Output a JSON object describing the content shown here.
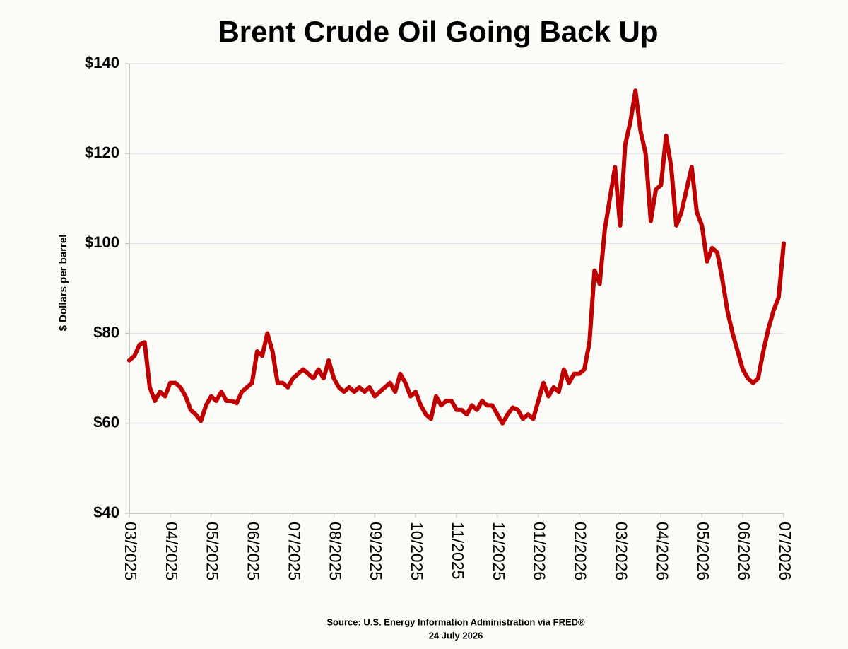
{
  "chart_data": {
    "type": "line",
    "title": "Brent Crude Oil Going Back Up",
    "ylabel": "$ Dollars per barrel",
    "source": "Source: U.S. Energy Information Administration via FRED®",
    "date": "24 July 2026",
    "categories": [
      "03/2025",
      null,
      null,
      null,
      null,
      null,
      null,
      null,
      "04/2025",
      null,
      null,
      null,
      null,
      null,
      null,
      null,
      "05/2025",
      null,
      null,
      null,
      null,
      null,
      null,
      null,
      "06/2025",
      null,
      null,
      null,
      null,
      null,
      null,
      null,
      "07/2025",
      null,
      null,
      null,
      null,
      null,
      null,
      null,
      "08/2025",
      null,
      null,
      null,
      null,
      null,
      null,
      null,
      "09/2025",
      null,
      null,
      null,
      null,
      null,
      null,
      null,
      "10/2025",
      null,
      null,
      null,
      null,
      null,
      null,
      null,
      "11/2025",
      null,
      null,
      null,
      null,
      null,
      null,
      null,
      "12/2025",
      null,
      null,
      null,
      null,
      null,
      null,
      null,
      "01/2026",
      null,
      null,
      null,
      null,
      null,
      null,
      null,
      "02/2026",
      null,
      null,
      null,
      null,
      null,
      null,
      null,
      "03/2026",
      null,
      null,
      null,
      null,
      null,
      null,
      null,
      "04/2026",
      null,
      null,
      null,
      null,
      null,
      null,
      null,
      "05/2026",
      null,
      null,
      null,
      null,
      null,
      null,
      null,
      "06/2026",
      null,
      null,
      null,
      null,
      null,
      null,
      null,
      "07/2026"
    ],
    "series": [
      {
        "name": "Brent",
        "color": "#c00000",
        "values": [
          74,
          75,
          77.5,
          78,
          68,
          65,
          67,
          66,
          69,
          69,
          68,
          66,
          63,
          62,
          60.5,
          64,
          66,
          65,
          67,
          65,
          65,
          64.5,
          67,
          68,
          69,
          76,
          75,
          80,
          76,
          69,
          69,
          68,
          70,
          71,
          72,
          71,
          70,
          72,
          70,
          74,
          70,
          68,
          67,
          68,
          67,
          68,
          67,
          68,
          66,
          67,
          68,
          69,
          67,
          71,
          69,
          66,
          67,
          64,
          62,
          61,
          66,
          64,
          65,
          65,
          63,
          63,
          62,
          64,
          63,
          65,
          64,
          64,
          62,
          60,
          62,
          63.5,
          63,
          61,
          62,
          61,
          65,
          69,
          66,
          68,
          67,
          72,
          69,
          71,
          71,
          72,
          78,
          94,
          91,
          103,
          110,
          117,
          104,
          122,
          127,
          134,
          125,
          120,
          105,
          112,
          113,
          124,
          117,
          104,
          107,
          112,
          117,
          107,
          104,
          96,
          99,
          98,
          92,
          85,
          80,
          76,
          72,
          70,
          69,
          70,
          76,
          81,
          85,
          88,
          100
        ]
      }
    ],
    "ylim": [
      40,
      140
    ],
    "yticks": [
      {
        "value": 40,
        "label": "$40"
      },
      {
        "value": 60,
        "label": "$60"
      },
      {
        "value": 80,
        "label": "$80"
      },
      {
        "value": 100,
        "label": "$100"
      },
      {
        "value": 120,
        "label": "$120"
      },
      {
        "value": 140,
        "label": "$140"
      }
    ],
    "grid": true
  }
}
